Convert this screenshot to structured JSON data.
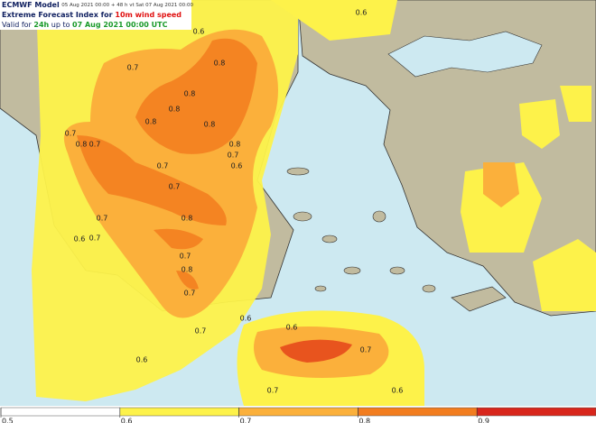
{
  "header": {
    "model": "ECMWF Model",
    "run": "05 Aug 2021 00:00 + 48 h vt Sat 07 Aug 2021 00:00",
    "title_prefix": "Extreme Forecast Index for",
    "title_highlight": "10m wind speed",
    "valid_prefix": "Valid for",
    "valid_period": "24h",
    "valid_mid": "up to",
    "valid_date": "07 Aug 2021 00:00 UTC"
  },
  "contour_labels": [
    0.6,
    0.6,
    0.7,
    0.8,
    0.8,
    0.8,
    0.8,
    0.8,
    0.8,
    0.7,
    0.7,
    0.8,
    0.7,
    0.6,
    0.7,
    0.7,
    0.8,
    0.7,
    0.6,
    0.7,
    0.7,
    0.8,
    0.7,
    0.6,
    0.7,
    0.6,
    0.7,
    0.6,
    0.7,
    0.6
  ],
  "colorbar": {
    "ticks": [
      0.5,
      0.6,
      0.7,
      0.8,
      0.9
    ],
    "colors": [
      "#ffffff",
      "#fdf24a",
      "#fbb03b",
      "#f27d1f",
      "#d8261c"
    ]
  }
}
